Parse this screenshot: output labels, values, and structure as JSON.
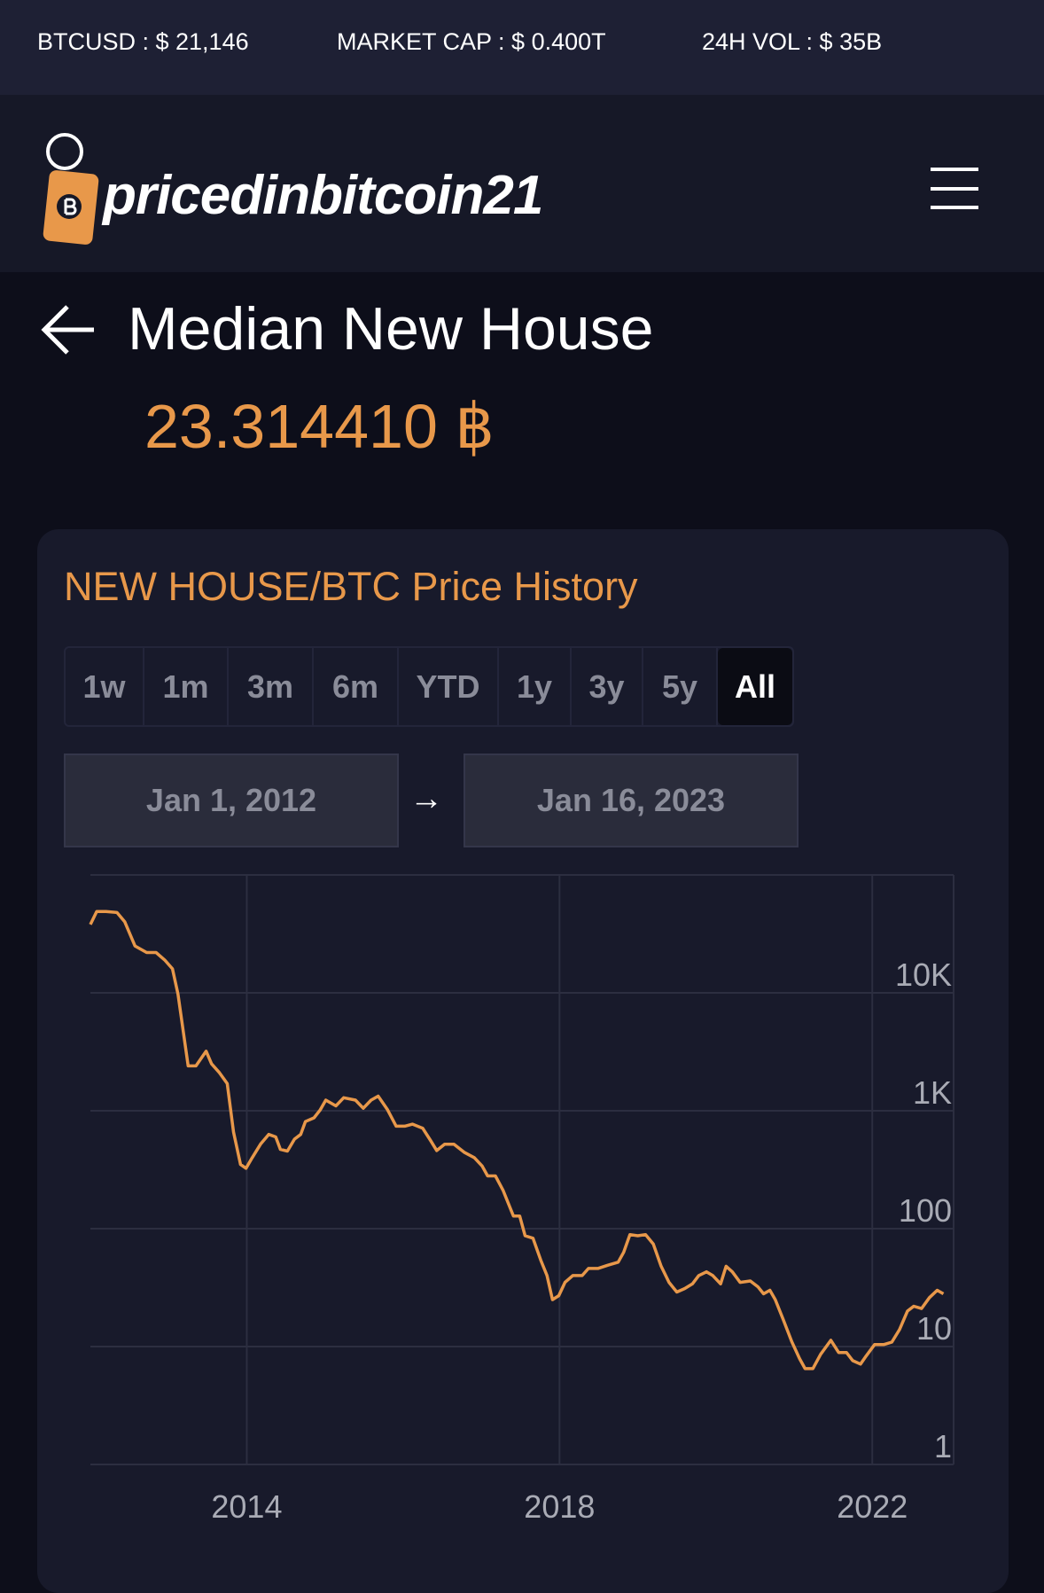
{
  "ticker": {
    "btcusd": "BTCUSD : $ 21,146",
    "market_cap": "MARKET CAP : $ 0.400T",
    "volume": "24H VOL : $ 35B"
  },
  "brand": "pricedinbitcoin21",
  "page": {
    "title": "Median New House",
    "price": "23.314410 ฿"
  },
  "controls": {
    "ranges": [
      "1w",
      "1m",
      "3m",
      "6m",
      "YTD",
      "1y",
      "3y",
      "5y",
      "All"
    ],
    "start_date": "Jan 1, 2012",
    "arrow": "→",
    "end_date": "Jan 16, 2023"
  },
  "chart_data": {
    "type": "line",
    "title": "NEW HOUSE/BTC Price History",
    "color": "#e8984a",
    "log_y": true,
    "grid": true,
    "xlim": [
      2012,
      2023.04
    ],
    "xticks": [
      2014,
      2018,
      2022
    ],
    "ylim": [
      1,
      100000
    ],
    "yticks": [
      1,
      10,
      100,
      {
        "value": 1000,
        "label": "1K"
      },
      {
        "value": 10000,
        "label": "10K"
      }
    ],
    "x": [
      2012.0,
      2012.08,
      2012.2,
      2012.34,
      2012.44,
      2012.57,
      2012.72,
      2012.84,
      2012.95,
      2013.05,
      2013.12,
      2013.25,
      2013.35,
      2013.48,
      2013.55,
      2013.65,
      2013.75,
      2013.83,
      2013.92,
      2013.99,
      2014.07,
      2014.18,
      2014.28,
      2014.37,
      2014.43,
      2014.52,
      2014.61,
      2014.69,
      2014.75,
      2014.86,
      2014.94,
      2015.01,
      2015.14,
      2015.24,
      2015.39,
      2015.49,
      2015.59,
      2015.68,
      2015.8,
      2015.91,
      2016.02,
      2016.12,
      2016.25,
      2016.35,
      2016.43,
      2016.53,
      2016.65,
      2016.78,
      2016.91,
      2017.01,
      2017.08,
      2017.18,
      2017.28,
      2017.41,
      2017.49,
      2017.56,
      2017.66,
      2017.76,
      2017.84,
      2017.91,
      2017.99,
      2018.07,
      2018.17,
      2018.29,
      2018.37,
      2018.49,
      2018.62,
      2018.75,
      2018.82,
      2018.9,
      2019.0,
      2019.1,
      2019.2,
      2019.3,
      2019.4,
      2019.5,
      2019.6,
      2019.7,
      2019.78,
      2019.88,
      2019.96,
      2020.06,
      2020.13,
      2020.21,
      2020.31,
      2020.44,
      2020.54,
      2020.61,
      2020.69,
      2020.76,
      2020.86,
      2020.97,
      2021.07,
      2021.14,
      2021.24,
      2021.34,
      2021.47,
      2021.57,
      2021.67,
      2021.75,
      2021.85,
      2021.92,
      2022.03,
      2022.15,
      2022.25,
      2022.35,
      2022.45,
      2022.53,
      2022.63,
      2022.73,
      2022.83,
      2022.91
    ],
    "values": [
      38000,
      49000,
      49000,
      48000,
      40000,
      25000,
      22000,
      22000,
      19000,
      16000,
      9800,
      2400,
      2400,
      3200,
      2500,
      2100,
      1700,
      660,
      350,
      325,
      400,
      525,
      630,
      600,
      470,
      455,
      575,
      630,
      810,
      870,
      1020,
      1230,
      1100,
      1290,
      1230,
      1050,
      1230,
      1330,
      1020,
      740,
      740,
      770,
      710,
      560,
      460,
      520,
      520,
      445,
      400,
      340,
      280,
      280,
      210,
      128,
      128,
      87,
      83,
      54,
      40,
      25,
      27,
      35,
      40,
      40,
      46,
      46,
      49,
      52,
      63,
      89,
      87,
      89,
      74,
      48,
      35,
      29,
      31,
      34,
      40,
      43,
      40,
      34,
      48,
      43,
      35,
      36,
      32,
      28,
      30,
      25,
      17,
      11,
      7.9,
      6.5,
      6.5,
      8.6,
      11.3,
      8.9,
      8.9,
      7.6,
      7.1,
      8.3,
      10.4,
      10.4,
      10.9,
      14,
      20,
      22,
      21,
      26,
      30,
      28
    ]
  }
}
